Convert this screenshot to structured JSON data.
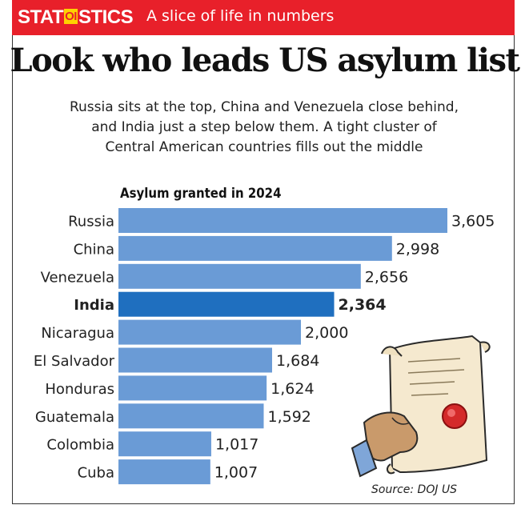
{
  "banner": {
    "brand_left": "STAT",
    "brand_mid": "OI",
    "brand_right": "STICS",
    "tagline": "A slice of life in numbers",
    "color": "#e8202a"
  },
  "headline": "Look who leads US asylum list",
  "subhead": {
    "line1": "Russia sits at the top, China and Venezuela close behind,",
    "line2": "and India just a step below them. A tight cluster of",
    "line3": "Central American countries fills out the middle"
  },
  "source": "Source: DOJ US",
  "illustration": "hand-holding-document-with-seal-icon",
  "colors": {
    "bar": "#6a9bd6",
    "bar_highlight": "#1f6fbf",
    "seal": "#d42a2a"
  },
  "chart_data": {
    "type": "bar",
    "orientation": "horizontal",
    "title": "Asylum granted in 2024",
    "categories": [
      "Russia",
      "China",
      "Venezuela",
      "India",
      "Nicaragua",
      "El Salvador",
      "Honduras",
      "Guatemala",
      "Colombia",
      "Cuba"
    ],
    "values": [
      3605,
      2998,
      2656,
      2364,
      2000,
      1684,
      1624,
      1592,
      1017,
      1007
    ],
    "value_labels": [
      "3,605",
      "2,998",
      "2,656",
      "2,364",
      "2,000",
      "1,684",
      "1,624",
      "1,592",
      "1,017",
      "1,007"
    ],
    "highlight": "India",
    "xlim": [
      0,
      3605
    ],
    "grid": false,
    "xlabel": "",
    "ylabel": ""
  }
}
